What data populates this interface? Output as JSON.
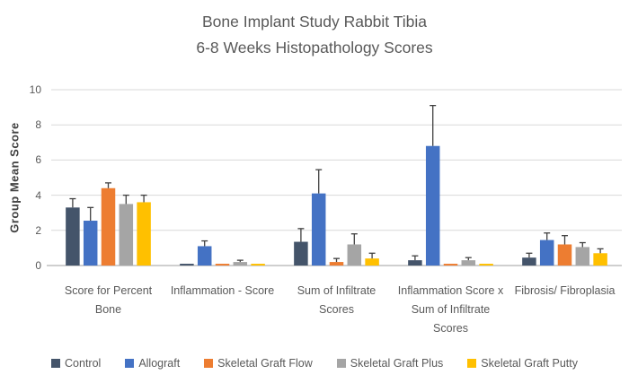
{
  "chart_data": {
    "type": "bar",
    "title_lines": [
      "Bone Implant Study Rabbit Tibia",
      "6-8 Weeks Histopathology Scores"
    ],
    "title": "Bone Implant Study Rabbit Tibia 6-8 Weeks Histopathology Scores",
    "ylabel": "Group Mean Score",
    "xlabel": "",
    "ylim": [
      0,
      10
    ],
    "yticks": [
      0,
      2,
      4,
      6,
      8,
      10
    ],
    "grid": true,
    "legend_position": "bottom",
    "grid_color": "#D9D9D9",
    "axis_color": "#BFBFBF",
    "error_bar_color": "#404040",
    "categories": [
      "Score for Percent Bone",
      "Inflammation - Score",
      "Sum of Infiltrate Scores",
      "Inflammation Score x Sum of Infiltrate Scores",
      "Fibrosis/ Fibroplasia"
    ],
    "series": [
      {
        "name": "Control",
        "color": "#44546A",
        "values": [
          3.3,
          0.1,
          1.35,
          0.3,
          0.45
        ],
        "errors": [
          0.5,
          0,
          0.75,
          0.25,
          0.25
        ]
      },
      {
        "name": "Allograft",
        "color": "#4472C4",
        "values": [
          2.55,
          1.1,
          4.1,
          6.8,
          1.45
        ],
        "errors": [
          0.75,
          0.3,
          1.35,
          2.3,
          0.4
        ]
      },
      {
        "name": "Skeletal Graft Flow",
        "color": "#ED7D31",
        "values": [
          4.4,
          0.1,
          0.2,
          0.1,
          1.2
        ],
        "errors": [
          0.3,
          0,
          0.2,
          0,
          0.5
        ]
      },
      {
        "name": "Skeletal Graft Plus",
        "color": "#A5A5A5",
        "values": [
          3.5,
          0.2,
          1.2,
          0.3,
          1.05
        ],
        "errors": [
          0.5,
          0.1,
          0.6,
          0.15,
          0.25
        ]
      },
      {
        "name": "Skeletal Graft Putty",
        "color": "#FFC000",
        "values": [
          3.6,
          0.1,
          0.4,
          0.1,
          0.7
        ],
        "errors": [
          0.4,
          0,
          0.3,
          0,
          0.25
        ]
      }
    ]
  }
}
